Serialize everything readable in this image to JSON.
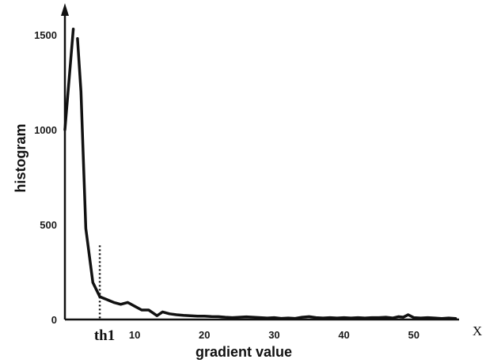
{
  "chart_data": {
    "type": "line",
    "title": "",
    "xlabel": "gradient value",
    "ylabel": "histogram",
    "x_axis_end_label": "X",
    "xlim": [
      0,
      56.5
    ],
    "ylim": [
      0,
      1600
    ],
    "x_ticks": [
      10,
      20,
      30,
      40,
      50
    ],
    "y_ticks": [
      0,
      500,
      1000,
      1500
    ],
    "grid": false,
    "legend": "none",
    "threshold": {
      "label": "th1",
      "x": 5,
      "y_top": 390
    },
    "series": [
      {
        "segments": [
          {
            "x": [
              0.0,
              1.2
            ],
            "y": [
              1000,
              1530
            ]
          },
          {
            "x": [
              1.8,
              2.3,
              3.0,
              4.0,
              5.0,
              6.0,
              7.0,
              8.0,
              9.0,
              10.0,
              11.0,
              12.0,
              12.6,
              13.2,
              14.0,
              15.0,
              16.0,
              17.0,
              18.0,
              19.0,
              20.0,
              21.0,
              22.0,
              23.0,
              24.0,
              25.0,
              26.0,
              27.0,
              28.0,
              29.0,
              30.0,
              31.0,
              32.0,
              33.0,
              34.0,
              35.0,
              36.0,
              37.0,
              38.0,
              39.0,
              40.0,
              41.0,
              42.0,
              43.0,
              44.0,
              45.0,
              46.0,
              47.0,
              47.8,
              48.5,
              49.2,
              50.0,
              51.0,
              52.0,
              53.0,
              54.0,
              55.0,
              56.0
            ],
            "y": [
              1480,
              1200,
              480,
              195,
              120,
              105,
              90,
              80,
              90,
              70,
              50,
              50,
              35,
              20,
              40,
              30,
              25,
              22,
              20,
              18,
              18,
              16,
              15,
              12,
              10,
              12,
              14,
              12,
              10,
              8,
              10,
              6,
              8,
              6,
              12,
              15,
              10,
              8,
              10,
              8,
              10,
              8,
              10,
              8,
              10,
              10,
              12,
              8,
              15,
              12,
              25,
              10,
              8,
              10,
              8,
              5,
              8,
              5
            ]
          }
        ]
      }
    ]
  }
}
